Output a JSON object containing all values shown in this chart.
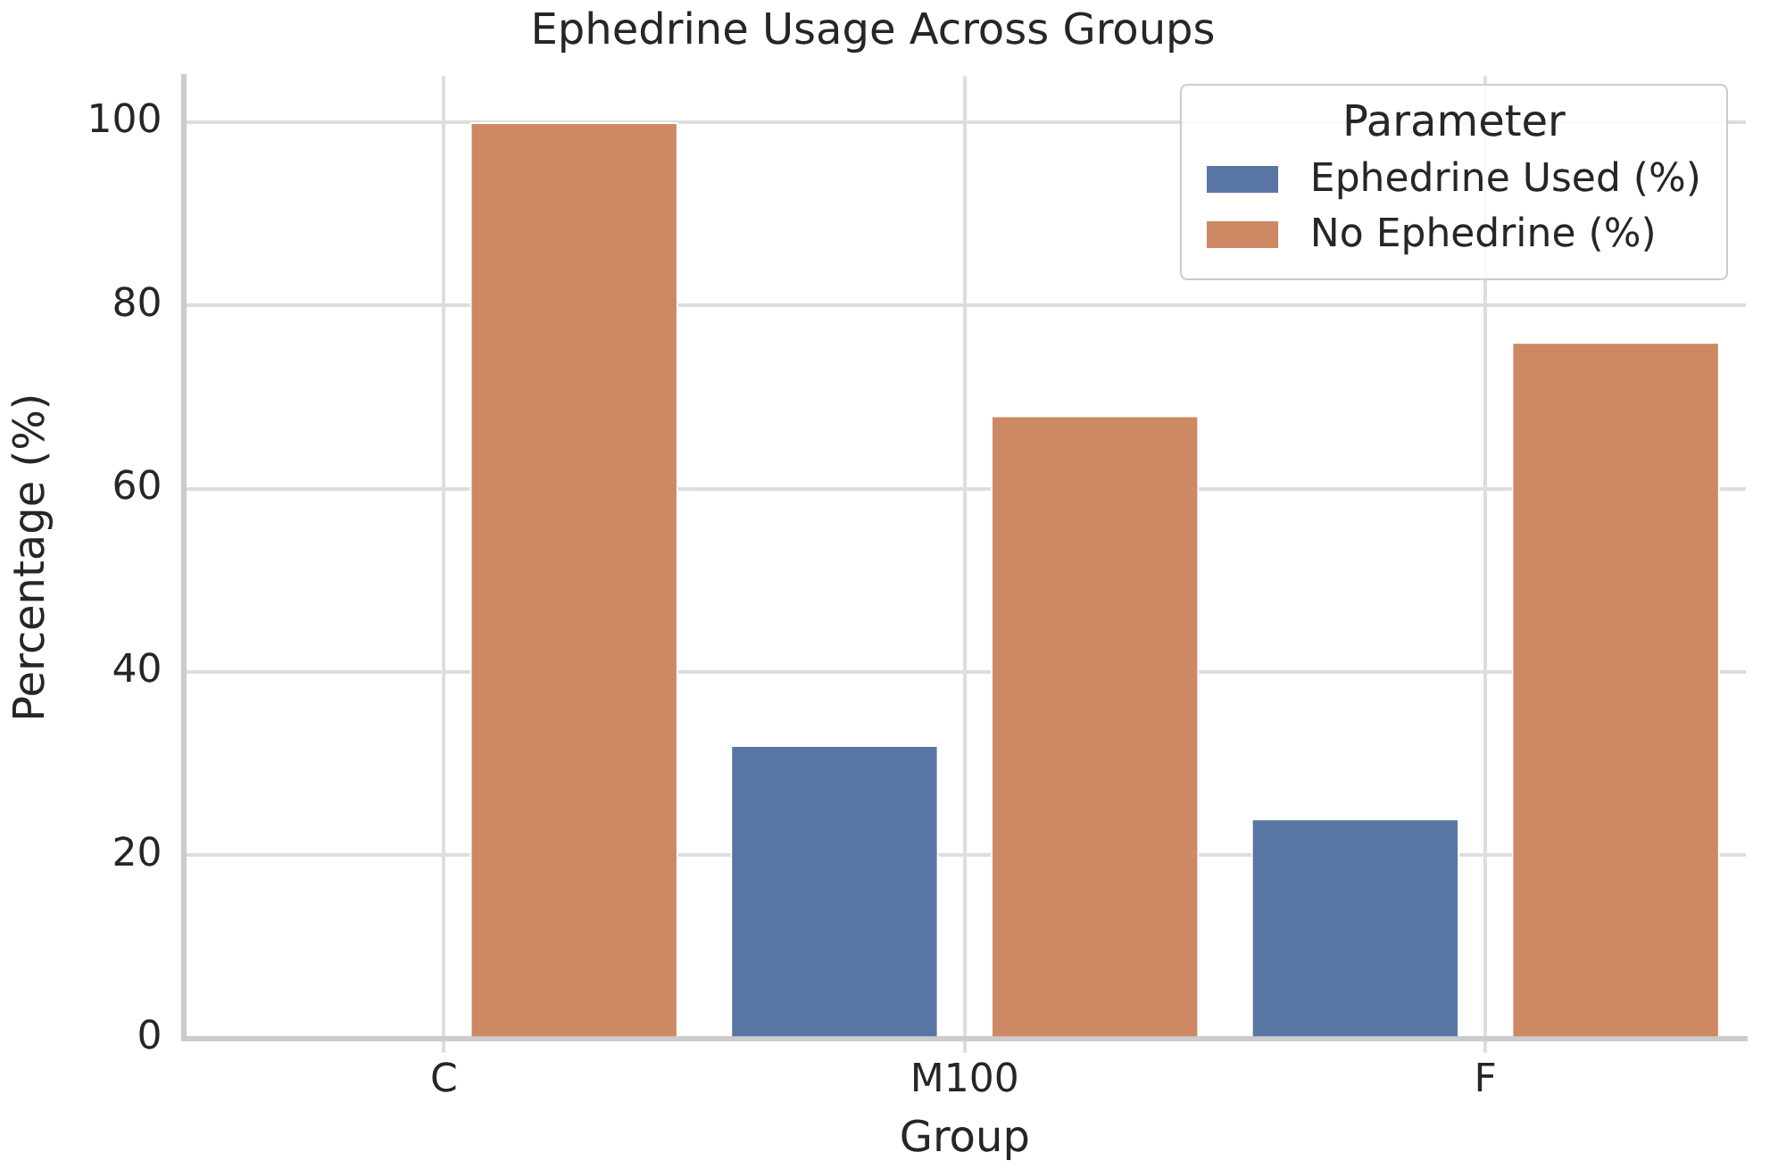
{
  "chart_data": {
    "type": "bar",
    "title": "Ephedrine Usage Across Groups",
    "xlabel": "Group",
    "ylabel": "Percentage (%)",
    "legend_title": "Parameter",
    "categories": [
      "C",
      "M100",
      "F"
    ],
    "series": [
      {
        "name": "Ephedrine Used (%)",
        "color": "#5975a4",
        "values": [
          0,
          32,
          24
        ]
      },
      {
        "name": "No Ephedrine (%)",
        "color": "#cc8963",
        "values": [
          100,
          68,
          76
        ]
      }
    ],
    "ylim": [
      0,
      105
    ],
    "yticks": [
      0,
      20,
      40,
      60,
      80,
      100
    ],
    "grid": true,
    "legend": "top right"
  }
}
